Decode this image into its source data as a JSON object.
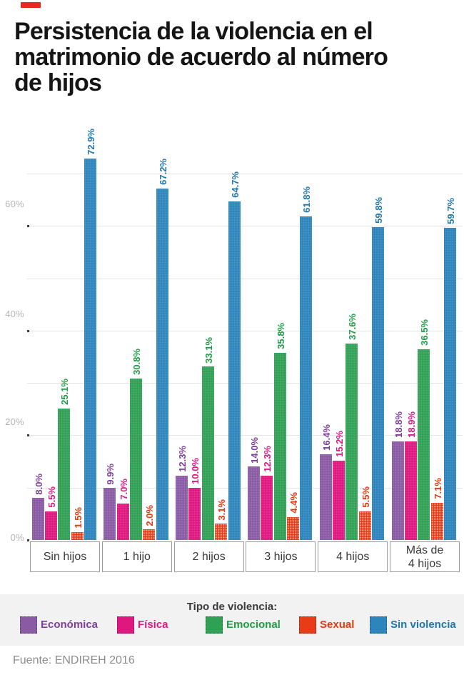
{
  "brand": {
    "mark_color": "#e8291f"
  },
  "header": {
    "title_lines": [
      "Persistencia de la violencia en el",
      "matrimonio de acuerdo al número",
      "de hijos"
    ]
  },
  "chart_data": {
    "type": "bar",
    "title": "Persistencia de la violencia en el matrimonio de acuerdo al número de hijos",
    "categories": [
      "Sin hijos",
      "1 hijo",
      "2 hijos",
      "3 hijos",
      "4 hijos",
      "Más de 4 hijos"
    ],
    "category_lines": [
      [
        "Sin hijos"
      ],
      [
        "1 hijo"
      ],
      [
        "2 hijos"
      ],
      [
        "3 hijos"
      ],
      [
        "4 hijos"
      ],
      [
        "Más de",
        "4 hijos"
      ]
    ],
    "series": [
      {
        "name": "Económica",
        "color": "#8a5ba5",
        "label_color": "#7d3f99",
        "dotted": false,
        "values": [
          8.0,
          9.9,
          12.3,
          14.0,
          16.4,
          18.8
        ]
      },
      {
        "name": "Física",
        "color": "#df1880",
        "label_color": "#df1880",
        "dotted": false,
        "values": [
          5.5,
          7.0,
          10.0,
          12.3,
          15.2,
          18.9
        ]
      },
      {
        "name": "Emocional",
        "color": "#30a055",
        "label_color": "#1f9c45",
        "dotted": false,
        "values": [
          25.1,
          30.8,
          33.1,
          35.8,
          37.6,
          36.5
        ]
      },
      {
        "name": "Sexual",
        "color": "#e83c18",
        "label_color": "#e8380f",
        "dotted": true,
        "values": [
          1.5,
          2.0,
          3.1,
          4.4,
          5.5,
          7.1
        ]
      },
      {
        "name": "Sin violencia",
        "color": "#2d85bc",
        "label_color": "#2176ae",
        "dotted": false,
        "values": [
          72.9,
          67.2,
          64.7,
          61.8,
          59.8,
          59.7
        ]
      }
    ],
    "value_suffix": "%",
    "yaxis": {
      "tick_labels": [
        "0%",
        "20%",
        "40%",
        "60%"
      ],
      "tick_values": [
        0,
        20,
        40,
        60
      ],
      "gridline_step": 10,
      "gridline_max": 70
    },
    "ylim": [
      0,
      80
    ],
    "grid": true,
    "legend_title": "Tipo de violencia:",
    "legend_position": "bottom"
  },
  "footer": {
    "source": "Fuente: ENDIREH 2016"
  }
}
